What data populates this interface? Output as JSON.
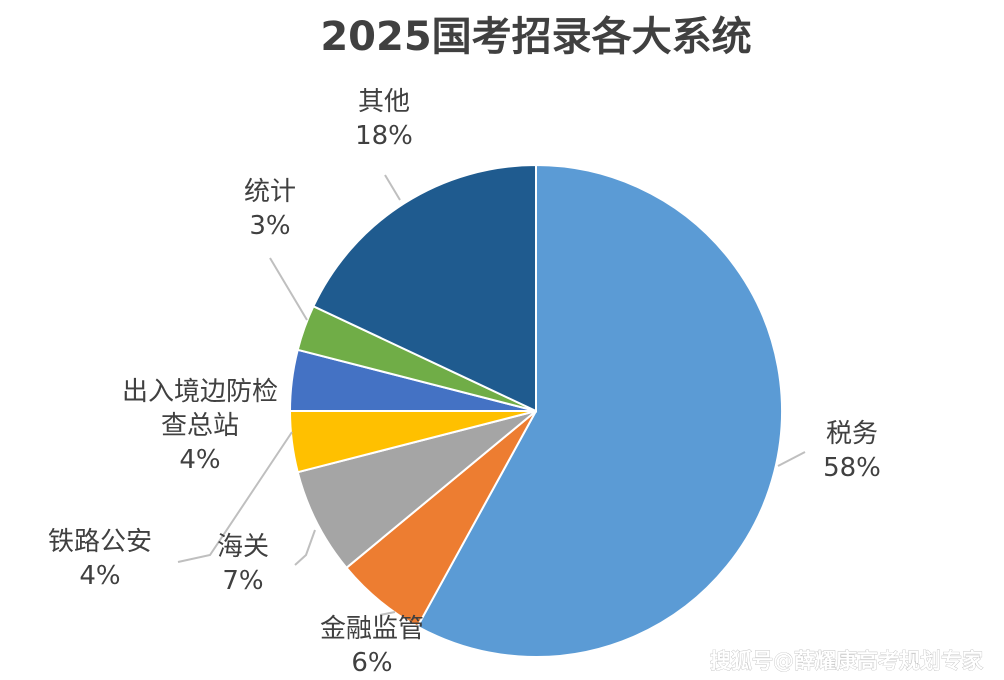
{
  "chart_data": {
    "type": "pie",
    "title": "2025国考招录各大系统",
    "start_angle_deg": 0,
    "direction": "clockwise",
    "slices": [
      {
        "label_lines": [
          "税务"
        ],
        "percent_label": "58%",
        "value": 58,
        "color": "#5b9bd5"
      },
      {
        "label_lines": [
          "金融监管"
        ],
        "percent_label": "6%",
        "value": 6,
        "color": "#ed7d31"
      },
      {
        "label_lines": [
          "海关"
        ],
        "percent_label": "7%",
        "value": 7,
        "color": "#a5a5a5"
      },
      {
        "label_lines": [
          "铁路公安"
        ],
        "percent_label": "4%",
        "value": 4,
        "color": "#ffc000"
      },
      {
        "label_lines": [
          "出入境边防检",
          "查总站"
        ],
        "percent_label": "4%",
        "value": 4,
        "color": "#4472c4"
      },
      {
        "label_lines": [
          "统计"
        ],
        "percent_label": "3%",
        "value": 3,
        "color": "#70ad47"
      },
      {
        "label_lines": [
          "其他"
        ],
        "percent_label": "18%",
        "value": 18,
        "color": "#1f5b8f"
      }
    ]
  },
  "watermark": "搜狐号@薛耀康高考规划专家"
}
